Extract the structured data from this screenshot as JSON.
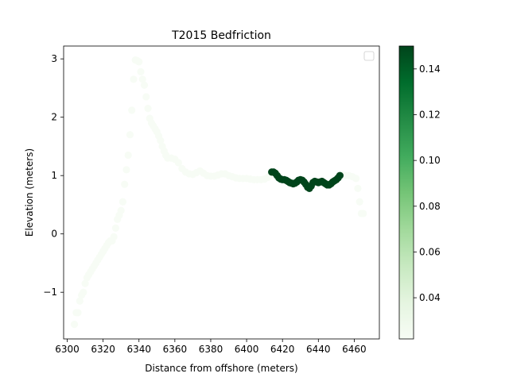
{
  "figure": {
    "title": "T2015 Bedfriction",
    "xlabel": "Distance from offshore (meters)",
    "ylabel": "Elevation (meters)"
  },
  "chart_data": {
    "type": "scatter",
    "title": "T2015 Bedfriction",
    "xlabel": "Distance from offshore (meters)",
    "ylabel": "Elevation (meters)",
    "xlim": [
      6298,
      6474
    ],
    "ylim": [
      -1.8,
      3.22
    ],
    "xticks": [
      6300,
      6320,
      6340,
      6360,
      6380,
      6400,
      6420,
      6440,
      6460
    ],
    "yticks": [
      -1,
      0,
      1,
      2,
      3
    ],
    "grid": false,
    "legend": {
      "location": "top-right",
      "entries": []
    },
    "colormap": "Greens",
    "colorbar": {
      "range": [
        0.022,
        0.15
      ],
      "ticks": [
        0.04,
        0.06,
        0.08,
        0.1,
        0.12,
        0.14
      ],
      "tick_labels": [
        "0.04",
        "0.06",
        "0.08",
        "0.10",
        "0.12",
        "0.14"
      ]
    },
    "series": [
      {
        "points": [
          [
            6304,
            -1.55,
            0.022
          ],
          [
            6305,
            -1.35,
            0.022
          ],
          [
            6306,
            -1.35,
            0.022
          ],
          [
            6307,
            -1.15,
            0.022
          ],
          [
            6308,
            -1.05,
            0.022
          ],
          [
            6309,
            -1.0,
            0.022
          ],
          [
            6310,
            -0.85,
            0.022
          ],
          [
            6311,
            -0.75,
            0.022
          ],
          [
            6312,
            -0.7,
            0.022
          ],
          [
            6313,
            -0.65,
            0.022
          ],
          [
            6314,
            -0.6,
            0.022
          ],
          [
            6315,
            -0.55,
            0.022
          ],
          [
            6316,
            -0.5,
            0.022
          ],
          [
            6317,
            -0.45,
            0.022
          ],
          [
            6318,
            -0.4,
            0.022
          ],
          [
            6319,
            -0.35,
            0.022
          ],
          [
            6320,
            -0.3,
            0.022
          ],
          [
            6321,
            -0.25,
            0.022
          ],
          [
            6322,
            -0.2,
            0.022
          ],
          [
            6323,
            -0.15,
            0.022
          ],
          [
            6324,
            -0.12,
            0.022
          ],
          [
            6325,
            -0.12,
            0.022
          ],
          [
            6326,
            -0.05,
            0.022
          ],
          [
            6327,
            0.1,
            0.022
          ],
          [
            6328,
            0.25,
            0.022
          ],
          [
            6329,
            0.32,
            0.022
          ],
          [
            6330,
            0.4,
            0.022
          ],
          [
            6331,
            0.55,
            0.022
          ],
          [
            6332,
            0.85,
            0.022
          ],
          [
            6333,
            1.1,
            0.022
          ],
          [
            6334,
            1.35,
            0.022
          ],
          [
            6335,
            1.7,
            0.022
          ],
          [
            6336,
            2.12,
            0.022
          ],
          [
            6337,
            2.65,
            0.022
          ],
          [
            6338,
            2.98,
            0.022
          ],
          [
            6339,
            2.97,
            0.022
          ],
          [
            6340,
            2.95,
            0.022
          ],
          [
            6341,
            2.78,
            0.022
          ],
          [
            6342,
            2.65,
            0.022
          ],
          [
            6343,
            2.55,
            0.022
          ],
          [
            6344,
            2.35,
            0.022
          ],
          [
            6345,
            2.15,
            0.022
          ],
          [
            6346,
            1.98,
            0.022
          ],
          [
            6347,
            1.9,
            0.022
          ],
          [
            6348,
            1.85,
            0.022
          ],
          [
            6349,
            1.8,
            0.022
          ],
          [
            6350,
            1.75,
            0.022
          ],
          [
            6351,
            1.68,
            0.022
          ],
          [
            6352,
            1.6,
            0.022
          ],
          [
            6353,
            1.5,
            0.022
          ],
          [
            6354,
            1.42,
            0.022
          ],
          [
            6355,
            1.35,
            0.022
          ],
          [
            6356,
            1.3,
            0.022
          ],
          [
            6358,
            1.3,
            0.022
          ],
          [
            6360,
            1.28,
            0.022
          ],
          [
            6362,
            1.22,
            0.022
          ],
          [
            6364,
            1.12,
            0.022
          ],
          [
            6366,
            1.06,
            0.022
          ],
          [
            6368,
            1.03,
            0.022
          ],
          [
            6370,
            1.02,
            0.022
          ],
          [
            6372,
            1.05,
            0.022
          ],
          [
            6374,
            1.08,
            0.022
          ],
          [
            6376,
            1.04,
            0.022
          ],
          [
            6378,
            1.0,
            0.022
          ],
          [
            6380,
            0.99,
            0.022
          ],
          [
            6382,
            0.99,
            0.022
          ],
          [
            6384,
            1.01,
            0.022
          ],
          [
            6386,
            1.03,
            0.022
          ],
          [
            6388,
            1.03,
            0.022
          ],
          [
            6390,
            1.0,
            0.022
          ],
          [
            6392,
            0.98,
            0.022
          ],
          [
            6394,
            0.96,
            0.022
          ],
          [
            6396,
            0.95,
            0.022
          ],
          [
            6398,
            0.95,
            0.022
          ],
          [
            6400,
            0.95,
            0.022
          ],
          [
            6402,
            0.94,
            0.022
          ],
          [
            6404,
            0.93,
            0.022
          ],
          [
            6406,
            0.93,
            0.022
          ],
          [
            6408,
            0.93,
            0.022
          ],
          [
            6410,
            0.94,
            0.022
          ],
          [
            6412,
            0.97,
            0.022
          ],
          [
            6413,
            1.0,
            0.022
          ],
          [
            6453,
            1.02,
            0.022
          ],
          [
            6455,
            1.0,
            0.022
          ],
          [
            6457,
            1.0,
            0.022
          ],
          [
            6459,
            0.98,
            0.022
          ],
          [
            6461,
            0.95,
            0.022
          ],
          [
            6462,
            0.78,
            0.022
          ],
          [
            6463,
            0.55,
            0.022
          ],
          [
            6464,
            0.35,
            0.022
          ],
          [
            6465,
            0.35,
            0.022
          ],
          [
            6414,
            1.06,
            0.15
          ],
          [
            6415,
            1.06,
            0.15
          ],
          [
            6416,
            1.04,
            0.15
          ],
          [
            6417,
            1.0,
            0.15
          ],
          [
            6418,
            0.96,
            0.15
          ],
          [
            6419,
            0.94,
            0.15
          ],
          [
            6420,
            0.93,
            0.15
          ],
          [
            6421,
            0.93,
            0.15
          ],
          [
            6422,
            0.92,
            0.15
          ],
          [
            6423,
            0.9,
            0.15
          ],
          [
            6424,
            0.88,
            0.15
          ],
          [
            6425,
            0.87,
            0.15
          ],
          [
            6426,
            0.86,
            0.15
          ],
          [
            6427,
            0.87,
            0.15
          ],
          [
            6428,
            0.89,
            0.15
          ],
          [
            6429,
            0.92,
            0.15
          ],
          [
            6430,
            0.93,
            0.15
          ],
          [
            6431,
            0.92,
            0.15
          ],
          [
            6432,
            0.89,
            0.15
          ],
          [
            6433,
            0.85,
            0.15
          ],
          [
            6434,
            0.8,
            0.15
          ],
          [
            6435,
            0.78,
            0.15
          ],
          [
            6436,
            0.82,
            0.15
          ],
          [
            6437,
            0.88,
            0.15
          ],
          [
            6438,
            0.9,
            0.15
          ],
          [
            6439,
            0.89,
            0.15
          ],
          [
            6440,
            0.88,
            0.15
          ],
          [
            6441,
            0.89,
            0.15
          ],
          [
            6442,
            0.9,
            0.15
          ],
          [
            6443,
            0.88,
            0.15
          ],
          [
            6444,
            0.86,
            0.15
          ],
          [
            6445,
            0.84,
            0.15
          ],
          [
            6446,
            0.84,
            0.15
          ],
          [
            6447,
            0.86,
            0.15
          ],
          [
            6448,
            0.89,
            0.15
          ],
          [
            6449,
            0.91,
            0.15
          ],
          [
            6450,
            0.93,
            0.15
          ],
          [
            6451,
            0.96,
            0.15
          ],
          [
            6452,
            1.0,
            0.15
          ]
        ]
      }
    ]
  }
}
